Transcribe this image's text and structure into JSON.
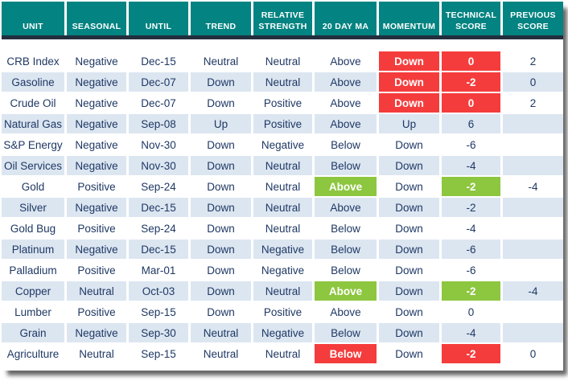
{
  "colors": {
    "header_bg": "#038381",
    "header_text": "#ffffff",
    "divider": "#222f3e",
    "row_bg": "#ffffff",
    "row_alt_bg": "#dce6f1",
    "text": "#1f3864",
    "red": "#f53c3c",
    "green": "#8dc63f"
  },
  "chart_data": {
    "type": "table",
    "columns": [
      {
        "key": "unit",
        "label": "UNIT"
      },
      {
        "key": "seasonal",
        "label": "SEASONAL"
      },
      {
        "key": "until",
        "label": "UNTIL"
      },
      {
        "key": "trend",
        "label": "TREND"
      },
      {
        "key": "relative_strength",
        "label": "RELATIVE STRENGTH"
      },
      {
        "key": "ma20",
        "label": "20 DAY MA"
      },
      {
        "key": "momentum",
        "label": "MOMENTUM"
      },
      {
        "key": "technical_score",
        "label": "TECHNICAL SCORE"
      },
      {
        "key": "previous_score",
        "label": "PREVIOUS SCORE"
      }
    ],
    "rows": [
      {
        "unit": "CRB Index",
        "seasonal": "Negative",
        "until": "Dec-15",
        "trend": "Neutral",
        "relative_strength": "Neutral",
        "ma20": "Above",
        "momentum": "Down",
        "technical_score": "0",
        "previous_score": "2",
        "hl": {
          "momentum": "red",
          "technical_score": "red"
        }
      },
      {
        "unit": "Gasoline",
        "seasonal": "Negative",
        "until": "Dec-07",
        "trend": "Down",
        "relative_strength": "Neutral",
        "ma20": "Above",
        "momentum": "Down",
        "technical_score": "-2",
        "previous_score": "0",
        "hl": {
          "momentum": "red",
          "technical_score": "red"
        }
      },
      {
        "unit": "Crude Oil",
        "seasonal": "Negative",
        "until": "Dec-07",
        "trend": "Down",
        "relative_strength": "Positive",
        "ma20": "Above",
        "momentum": "Down",
        "technical_score": "0",
        "previous_score": "2",
        "hl": {
          "momentum": "red",
          "technical_score": "red"
        }
      },
      {
        "unit": "Natural Gas",
        "seasonal": "Negative",
        "until": "Sep-08",
        "trend": "Up",
        "relative_strength": "Positive",
        "ma20": "Above",
        "momentum": "Up",
        "technical_score": "6",
        "previous_score": "",
        "hl": {}
      },
      {
        "unit": "S&P Energy",
        "seasonal": "Negative",
        "until": "Nov-30",
        "trend": "Down",
        "relative_strength": "Negative",
        "ma20": "Below",
        "momentum": "Down",
        "technical_score": "-6",
        "previous_score": "",
        "hl": {}
      },
      {
        "unit": "Oil Services",
        "seasonal": "Negative",
        "until": "Nov-30",
        "trend": "Down",
        "relative_strength": "Neutral",
        "ma20": "Below",
        "momentum": "Down",
        "technical_score": "-4",
        "previous_score": "",
        "hl": {}
      },
      {
        "unit": "Gold",
        "seasonal": "Positive",
        "until": "Sep-24",
        "trend": "Down",
        "relative_strength": "Neutral",
        "ma20": "Above",
        "momentum": "Down",
        "technical_score": "-2",
        "previous_score": "-4",
        "hl": {
          "ma20": "green",
          "technical_score": "green"
        }
      },
      {
        "unit": "Silver",
        "seasonal": "Negative",
        "until": "Dec-15",
        "trend": "Down",
        "relative_strength": "Neutral",
        "ma20": "Above",
        "momentum": "Down",
        "technical_score": "-2",
        "previous_score": "",
        "hl": {}
      },
      {
        "unit": "Gold Bug",
        "seasonal": "Positive",
        "until": "Sep-24",
        "trend": "Down",
        "relative_strength": "Neutral",
        "ma20": "Below",
        "momentum": "Down",
        "technical_score": "-4",
        "previous_score": "",
        "hl": {}
      },
      {
        "unit": "Platinum",
        "seasonal": "Negative",
        "until": "Dec-15",
        "trend": "Down",
        "relative_strength": "Negative",
        "ma20": "Below",
        "momentum": "Down",
        "technical_score": "-6",
        "previous_score": "",
        "hl": {}
      },
      {
        "unit": "Palladium",
        "seasonal": "Positive",
        "until": "Mar-01",
        "trend": "Down",
        "relative_strength": "Negative",
        "ma20": "Below",
        "momentum": "Down",
        "technical_score": "-6",
        "previous_score": "",
        "hl": {}
      },
      {
        "unit": "Copper",
        "seasonal": "Neutral",
        "until": "Oct-03",
        "trend": "Down",
        "relative_strength": "Neutral",
        "ma20": "Above",
        "momentum": "Down",
        "technical_score": "-2",
        "previous_score": "-4",
        "hl": {
          "ma20": "green",
          "technical_score": "green"
        }
      },
      {
        "unit": "Lumber",
        "seasonal": "Positive",
        "until": "Sep-15",
        "trend": "Down",
        "relative_strength": "Positive",
        "ma20": "Above",
        "momentum": "Down",
        "technical_score": "0",
        "previous_score": "",
        "hl": {}
      },
      {
        "unit": "Grain",
        "seasonal": "Negative",
        "until": "Sep-30",
        "trend": "Neutral",
        "relative_strength": "Negative",
        "ma20": "Below",
        "momentum": "Down",
        "technical_score": "-4",
        "previous_score": "",
        "hl": {}
      },
      {
        "unit": "Agriculture",
        "seasonal": "Neutral",
        "until": "Sep-15",
        "trend": "Neutral",
        "relative_strength": "Neutral",
        "ma20": "Below",
        "momentum": "Down",
        "technical_score": "-2",
        "previous_score": "0",
        "hl": {
          "ma20": "red",
          "technical_score": "red"
        }
      }
    ]
  }
}
